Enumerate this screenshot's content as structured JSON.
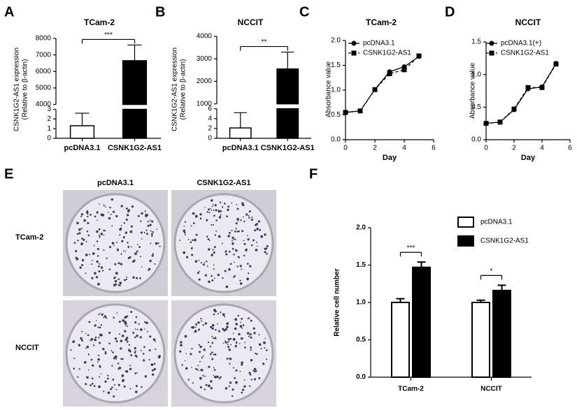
{
  "chart_data": [
    {
      "type": "bar",
      "panel_label": "A",
      "title": "TCam-2",
      "y_label": [
        "CSNK1G2-AS1 expression",
        "(Relative to β-actin)"
      ],
      "categories": [
        "pcDNA3.1",
        "CSNK1G2-AS1"
      ],
      "values": [
        1.3,
        6650
      ],
      "errors": [
        1.3,
        950
      ],
      "colors": [
        "#ffffff",
        "#000000"
      ],
      "ylim": [
        0,
        8000
      ],
      "axis_break": [
        3,
        4000
      ],
      "yticks": [
        0,
        1,
        2,
        3,
        4000,
        5000,
        6000,
        7000,
        8000
      ],
      "significance": [
        "***"
      ]
    },
    {
      "type": "bar",
      "panel_label": "B",
      "title": "NCCIT",
      "y_label": [
        "CSNK1G2-AS1 expression",
        "(Relative to β-actin)"
      ],
      "categories": [
        "pcDNA3.1",
        "CSNK1G2-AS1"
      ],
      "values": [
        2.1,
        2550
      ],
      "errors": [
        3.1,
        750
      ],
      "colors": [
        "#ffffff",
        "#000000"
      ],
      "ylim": [
        0,
        4000
      ],
      "axis_break": [
        6,
        1000
      ],
      "yticks": [
        0,
        2,
        4,
        6,
        1000,
        2000,
        3000,
        4000
      ],
      "significance": [
        "**"
      ]
    },
    {
      "type": "line",
      "panel_label": "C",
      "title": "TCam-2",
      "x_label": "Day",
      "y_label": "Absorbance value",
      "x": [
        0,
        1,
        2,
        3,
        4,
        5
      ],
      "xlim": [
        0,
        6
      ],
      "xticks": [
        0,
        2,
        4,
        6
      ],
      "ylim": [
        0,
        2
      ],
      "yticks": [
        {
          "value": 0,
          "label": "0.0"
        },
        {
          "value": 0.5,
          "label": "0.5"
        },
        {
          "value": 1,
          "label": "1.0"
        },
        {
          "value": 1.5,
          "label": "1.5"
        },
        {
          "value": 2,
          "label": "2.0"
        }
      ],
      "series": [
        {
          "name": "pcDNA3.1",
          "color": "#000000",
          "marker": "circle",
          "dashed": false,
          "values": [
            0.55,
            0.58,
            1.01,
            1.37,
            1.47,
            1.68
          ]
        },
        {
          "name": "CSNK1G2-AS1",
          "color": "#000000",
          "marker": "square",
          "dashed": true,
          "values": [
            0.55,
            0.58,
            1.01,
            1.33,
            1.41,
            1.69
          ]
        }
      ]
    },
    {
      "type": "line",
      "panel_label": "D",
      "title": "NCCIT",
      "x_label": "Day",
      "y_label": "Absorbance value",
      "x": [
        0,
        1,
        2,
        3,
        4,
        5
      ],
      "xlim": [
        0,
        6
      ],
      "xticks": [
        0,
        2,
        4,
        6
      ],
      "ylim": [
        0,
        1.5
      ],
      "yticks": [
        {
          "value": 0,
          "label": "0.0"
        },
        {
          "value": 0.5,
          "label": "0.5"
        },
        {
          "value": 1,
          "label": "1.0"
        },
        {
          "value": 1.5,
          "label": "1.5"
        }
      ],
      "series": [
        {
          "name": "pcDNA3.1(+)",
          "color": "#000000",
          "marker": "circle",
          "dashed": false,
          "values": [
            0.25,
            0.27,
            0.46,
            0.78,
            0.81,
            1.17
          ]
        },
        {
          "name": "CSNK1G2-AS1",
          "color": "#000000",
          "marker": "square",
          "dashed": true,
          "values": [
            0.25,
            0.27,
            0.47,
            0.8,
            0.8,
            1.16
          ]
        }
      ]
    },
    {
      "type": "grouped_bar",
      "panel_label": "F",
      "y_label": "Relative cell number",
      "categories": [
        "TCam-2",
        "NCCIT"
      ],
      "series": [
        {
          "name": "pcDNA3.1",
          "color": "#ffffff",
          "values": [
            1.0,
            1.0
          ],
          "errors": [
            0.05,
            0.03
          ]
        },
        {
          "name": "CSNK1G2-AS1",
          "color": "#000000",
          "values": [
            1.47,
            1.16
          ],
          "errors": [
            0.07,
            0.07
          ]
        }
      ],
      "ylim": [
        0,
        2
      ],
      "yticks": [
        {
          "value": 0,
          "label": "0.0"
        },
        {
          "value": 0.5,
          "label": "0.5"
        },
        {
          "value": 1,
          "label": "1.0"
        },
        {
          "value": 1.5,
          "label": "1.5"
        },
        {
          "value": 2,
          "label": "2.0"
        }
      ],
      "significance": [
        "***",
        "*"
      ],
      "legend": "top-right"
    }
  ],
  "panel_e": {
    "panel_label": "E",
    "columns": [
      "pcDNA3.1",
      "CSNK1G2-AS1"
    ],
    "rows": [
      "TCam-2",
      "NCCIT"
    ]
  }
}
